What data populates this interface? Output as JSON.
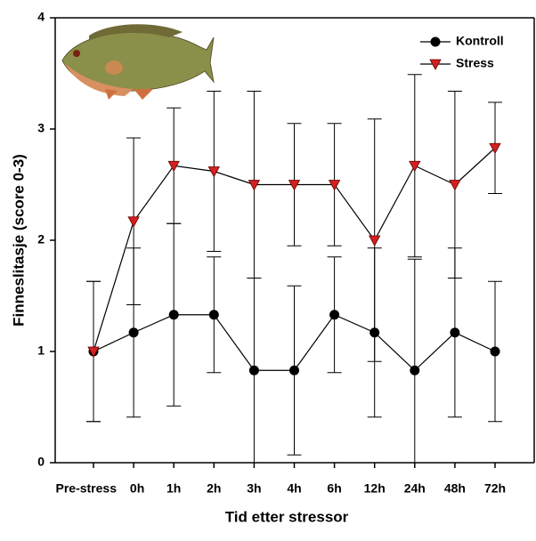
{
  "chart_data": {
    "type": "line",
    "x_label": "Tid etter stressor",
    "y_label": "Finneslitasje (score 0-3)",
    "categories": [
      "Pre-stress",
      "0h",
      "1h",
      "2h",
      "3h",
      "4h",
      "6h",
      "12h",
      "24h",
      "48h",
      "72h"
    ],
    "series": [
      {
        "name": "Kontroll",
        "color": "#000000",
        "marker": "circle",
        "values": [
          1.0,
          1.17,
          1.33,
          1.33,
          0.83,
          0.83,
          1.33,
          1.17,
          0.83,
          1.17,
          1.0
        ],
        "errors": [
          0.63,
          0.76,
          0.82,
          0.52,
          0.83,
          0.76,
          0.52,
          0.76,
          1.0,
          0.76,
          0.63
        ]
      },
      {
        "name": "Stress",
        "color": "#d42020",
        "marker": "triangle-down",
        "values": [
          1.0,
          2.17,
          2.67,
          2.62,
          2.5,
          2.5,
          2.5,
          2.0,
          2.67,
          2.5,
          2.83
        ],
        "errors": [
          0.63,
          0.75,
          0.52,
          0.72,
          0.84,
          0.55,
          0.55,
          1.09,
          0.82,
          0.84,
          0.41
        ]
      }
    ],
    "ylim": [
      0,
      4
    ],
    "yticks": [
      0,
      1,
      2,
      3,
      4
    ],
    "grid": false,
    "legend_position": "upper right"
  }
}
